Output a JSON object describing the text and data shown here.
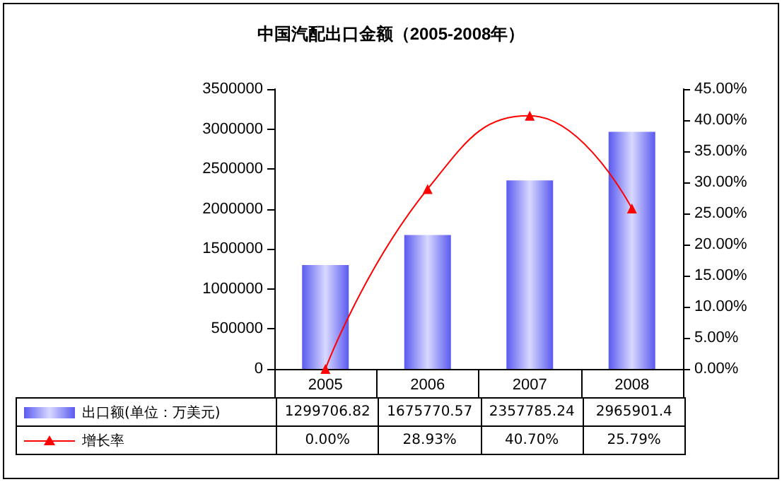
{
  "chart_data": {
    "type": "bar",
    "title": "中国汽配出口金额（2005-2008年）",
    "categories": [
      "2005",
      "2006",
      "2007",
      "2008"
    ],
    "series": [
      {
        "name": "出口额(单位：万美元)",
        "color": "#5a5af0",
        "values": [
          1299706.82,
          1675770.57,
          2357785.24,
          2965901.4
        ],
        "value_labels": [
          "1299706.82",
          "1675770.57",
          "2357785.24",
          "2965901.4"
        ]
      },
      {
        "name": "增长率",
        "type": "line",
        "axis": "y2",
        "color": "#ff0000",
        "marker": "triangle",
        "values": [
          0,
          28.93,
          40.7,
          25.79
        ],
        "value_labels": [
          "0.00%",
          "28.93%",
          "40.70%",
          "25.79%"
        ]
      }
    ],
    "ylim": [
      0,
      3500000
    ],
    "yticks": [
      0,
      500000,
      1000000,
      1500000,
      2000000,
      2500000,
      3000000,
      3500000
    ],
    "y2lim": [
      0,
      45
    ],
    "y2ticks": [
      {
        "value": 0,
        "label": "0.00%"
      },
      {
        "value": 5,
        "label": "5.00%"
      },
      {
        "value": 10,
        "label": "10.00%"
      },
      {
        "value": 15,
        "label": "15.00%"
      },
      {
        "value": 20,
        "label": "20.00%"
      },
      {
        "value": 25,
        "label": "25.00%"
      },
      {
        "value": 30,
        "label": "30.00%"
      },
      {
        "value": 35,
        "label": "35.00%"
      },
      {
        "value": 40,
        "label": "40.00%"
      },
      {
        "value": 45,
        "label": "45.00%"
      }
    ],
    "legend": "bottom left",
    "grid": false
  }
}
